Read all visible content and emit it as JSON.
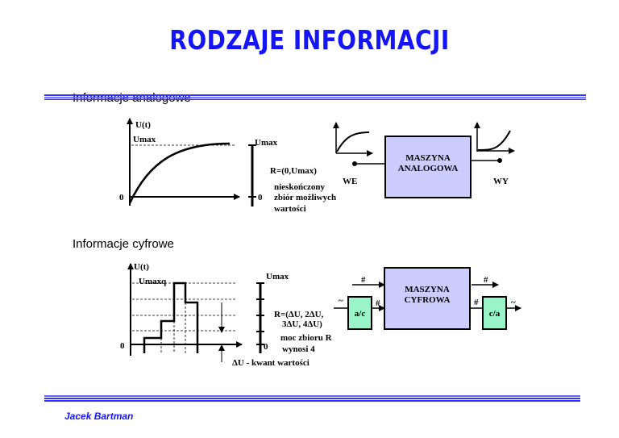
{
  "title": "RODZAJE INFORMACJI",
  "author": "Jacek Bartman",
  "colors": {
    "title": "#1414ff",
    "rule": "#3333ff",
    "analog_box": "#ccccff",
    "converter_box": "#99f5c8"
  },
  "analog": {
    "heading": "Informacje analogowe",
    "axis_y_label": "U(t)",
    "umax_label": "Umax",
    "zero_label": "0",
    "bar_umax_label": "Umax",
    "bar_zero_label": "0",
    "range": "R=(0,Umax)",
    "desc": [
      "nieskończony",
      "zbiór możliwych",
      "wartości"
    ],
    "machine": [
      "MASZYNA",
      "ANALOGOWA"
    ],
    "input_label": "WE",
    "output_label": "WY"
  },
  "digital": {
    "heading": "Informacje cyfrowe",
    "axis_y_label": "U(t)",
    "umax_label": "Umaxq",
    "zero_label": "0",
    "bar_umax_label": "Umax",
    "bar_zero_label": "0",
    "range": [
      "R=(ΔU, 2ΔU,",
      "3ΔU, 4ΔU)"
    ],
    "desc": [
      "moc zbioru R",
      "wynosi 4"
    ],
    "quantum": "ΔU - kwant  wartości",
    "machine": [
      "MASZYNA",
      "CYFROWA"
    ],
    "adc": "a/c",
    "dac": "c/a",
    "digital_symbol": "#",
    "analog_symbol": "~"
  }
}
